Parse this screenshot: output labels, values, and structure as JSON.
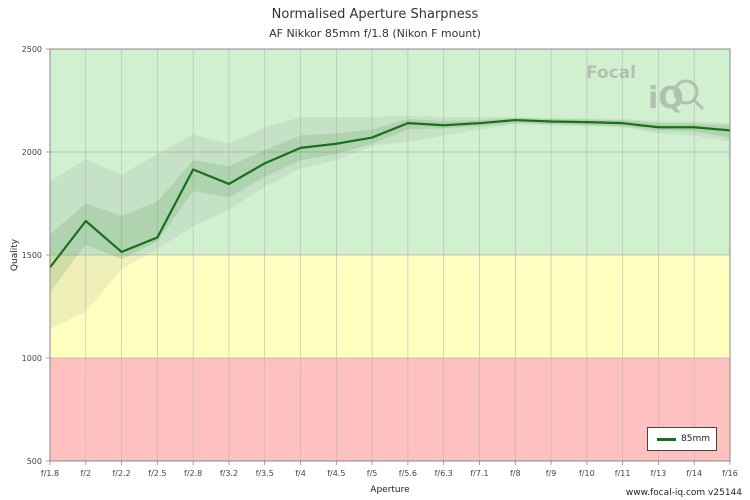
{
  "chart_data": {
    "type": "line",
    "title": "Normalised Aperture Sharpness",
    "subtitle": "AF Nikkor 85mm f/1.8 (Nikon F mount)",
    "xlabel": "Aperture",
    "ylabel": "Quality",
    "ylim": [
      500,
      2500
    ],
    "yticks": [
      500,
      1000,
      1500,
      2000,
      2500
    ],
    "grid": true,
    "legend_position": "bottom-right",
    "bands": [
      {
        "from": 500,
        "to": 1000,
        "color": "#ffc0c0"
      },
      {
        "from": 1000,
        "to": 1500,
        "color": "#ffffc0"
      },
      {
        "from": 1500,
        "to": 2500,
        "color": "#d0f0d0"
      }
    ],
    "categories": [
      "f/1.8",
      "f/2",
      "f/2.2",
      "f/2.5",
      "f/2.8",
      "f/3.2",
      "f/3.5",
      "f/4",
      "f/4.5",
      "f/5",
      "f/5.6",
      "f/6.3",
      "f/7.1",
      "f/8",
      "f/9",
      "f/10",
      "f/11",
      "f/13",
      "f/14",
      "f/16"
    ],
    "series": [
      {
        "name": "85mm",
        "color": "#1a6f1a",
        "values": [
          1440,
          1665,
          1515,
          1585,
          1915,
          1845,
          1945,
          2020,
          2040,
          2070,
          2140,
          2130,
          2140,
          2155,
          2148,
          2145,
          2140,
          2120,
          2120,
          2105
        ],
        "band_inner_low": [
          1320,
          1550,
          1480,
          1565,
          1810,
          1780,
          1880,
          1960,
          1990,
          2040,
          2110,
          2115,
          2125,
          2140,
          2135,
          2130,
          2125,
          2105,
          2100,
          2070
        ],
        "band_inner_high": [
          1600,
          1750,
          1690,
          1760,
          1960,
          1930,
          2010,
          2080,
          2090,
          2110,
          2160,
          2150,
          2155,
          2165,
          2160,
          2157,
          2155,
          2140,
          2138,
          2130
        ],
        "band_outer_low": [
          1140,
          1225,
          1430,
          1530,
          1640,
          1720,
          1830,
          1920,
          1960,
          2030,
          2050,
          2080,
          2110,
          2135,
          2130,
          2125,
          2120,
          2090,
          2080,
          2050
        ],
        "band_outer_high": [
          1860,
          1965,
          1890,
          1990,
          2085,
          2040,
          2120,
          2170,
          2170,
          2170,
          2175,
          2170,
          2170,
          2170,
          2165,
          2162,
          2160,
          2150,
          2148,
          2140
        ]
      }
    ]
  },
  "footer": "www.focal-iq.com  v25144",
  "logo": {
    "text_top": "Focal",
    "text_bottom": "iQ"
  }
}
